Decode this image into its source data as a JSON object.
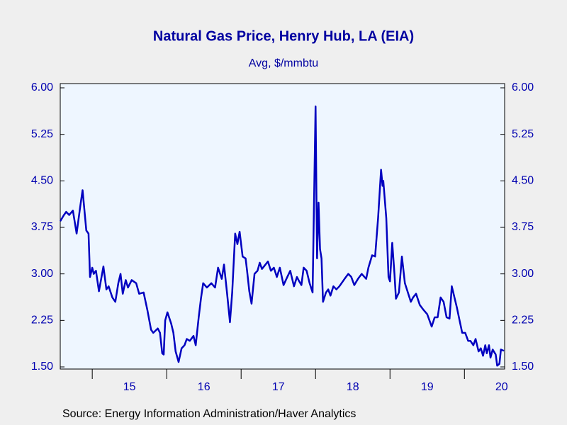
{
  "chart_data": {
    "type": "line",
    "title": "Natural Gas Price, Henry Hub, LA (EIA)",
    "subtitle": "Avg, $/mmbtu",
    "source": "Source:  Energy Information Administration/Haver Analytics",
    "x": [
      2014.57,
      2014.62,
      2014.65,
      2014.69,
      2014.74,
      2014.79,
      2014.84,
      2014.87,
      2014.92,
      2014.95,
      2014.97,
      2015.0,
      2015.02,
      2015.05,
      2015.09,
      2015.15,
      2015.19,
      2015.22,
      2015.27,
      2015.31,
      2015.35,
      2015.38,
      2015.41,
      2015.45,
      2015.48,
      2015.53,
      2015.59,
      2015.63,
      2015.69,
      2015.74,
      2015.79,
      2015.82,
      2015.88,
      2015.91,
      2015.94,
      2015.96,
      2015.98,
      2016.01,
      2016.06,
      2016.09,
      2016.12,
      2016.16,
      2016.2,
      2016.24,
      2016.27,
      2016.31,
      2016.36,
      2016.39,
      2016.43,
      2016.46,
      2016.49,
      2016.54,
      2016.6,
      2016.65,
      2016.69,
      2016.74,
      2016.77,
      2016.81,
      2016.85,
      2016.88,
      2016.92,
      2016.95,
      2016.98,
      2017.02,
      2017.06,
      2017.08,
      2017.11,
      2017.14,
      2017.18,
      2017.22,
      2017.25,
      2017.28,
      2017.36,
      2017.4,
      2017.44,
      2017.48,
      2017.52,
      2017.57,
      2017.62,
      2017.66,
      2017.71,
      2017.75,
      2017.78,
      2017.81,
      2017.84,
      2017.88,
      2017.92,
      2017.96,
      2018.0,
      2018.02,
      2018.04,
      2018.06,
      2018.08,
      2018.1,
      2018.14,
      2018.17,
      2018.2,
      2018.24,
      2018.28,
      2018.32,
      2018.39,
      2018.44,
      2018.48,
      2018.52,
      2018.57,
      2018.62,
      2018.68,
      2018.71,
      2018.76,
      2018.8,
      2018.84,
      2018.88,
      2018.9,
      2018.91,
      2018.95,
      2018.98,
      2019.0,
      2019.03,
      2019.06,
      2019.08,
      2019.12,
      2019.16,
      2019.2,
      2019.24,
      2019.28,
      2019.31,
      2019.35,
      2019.4,
      2019.45,
      2019.5,
      2019.56,
      2019.6,
      2019.64,
      2019.68,
      2019.72,
      2019.76,
      2019.8,
      2019.83,
      2019.87,
      2019.9,
      2019.94,
      2019.97,
      2020.01,
      2020.05,
      2020.08,
      2020.12,
      2020.15,
      2020.19,
      2020.22,
      2020.25,
      2020.28,
      2020.3,
      2020.33,
      2020.35,
      2020.38,
      2020.42,
      2020.44,
      2020.47,
      2020.49,
      2020.53
    ],
    "series": [
      {
        "color": "#0000c0",
        "values": [
          3.85,
          3.95,
          4.0,
          3.95,
          4.02,
          3.65,
          4.1,
          4.35,
          3.7,
          3.65,
          2.95,
          3.1,
          3.0,
          3.05,
          2.72,
          3.12,
          2.75,
          2.8,
          2.62,
          2.55,
          2.85,
          3.0,
          2.68,
          2.9,
          2.78,
          2.9,
          2.85,
          2.68,
          2.7,
          2.42,
          2.1,
          2.05,
          2.12,
          2.05,
          1.72,
          1.7,
          2.25,
          2.38,
          2.2,
          2.05,
          1.75,
          1.58,
          1.8,
          1.85,
          1.95,
          1.92,
          2.0,
          1.85,
          2.3,
          2.6,
          2.85,
          2.78,
          2.85,
          2.78,
          3.1,
          2.92,
          3.15,
          2.7,
          2.22,
          2.7,
          3.65,
          3.48,
          3.68,
          3.28,
          3.25,
          3.05,
          2.72,
          2.52,
          3.0,
          3.05,
          3.18,
          3.08,
          3.2,
          3.05,
          3.1,
          2.95,
          3.1,
          2.82,
          2.95,
          3.05,
          2.8,
          2.95,
          2.88,
          2.82,
          3.1,
          3.05,
          2.85,
          2.7,
          5.7,
          3.25,
          4.15,
          3.4,
          3.25,
          2.55,
          2.7,
          2.75,
          2.65,
          2.8,
          2.75,
          2.8,
          2.92,
          3.0,
          2.95,
          2.82,
          2.92,
          3.0,
          2.92,
          3.1,
          3.3,
          3.28,
          3.9,
          4.68,
          4.42,
          4.5,
          3.9,
          2.95,
          2.88,
          3.5,
          3.0,
          2.6,
          2.7,
          3.28,
          2.85,
          2.7,
          2.55,
          2.62,
          2.68,
          2.5,
          2.42,
          2.35,
          2.15,
          2.3,
          2.3,
          2.62,
          2.55,
          2.3,
          2.28,
          2.8,
          2.6,
          2.45,
          2.22,
          2.05,
          2.05,
          1.92,
          1.92,
          1.85,
          1.95,
          1.75,
          1.8,
          1.68,
          1.85,
          1.72,
          1.85,
          1.65,
          1.78,
          1.7,
          1.52,
          1.55,
          1.78,
          1.76
        ]
      }
    ],
    "xlim": [
      2014.57,
      2020.54
    ],
    "xticks": [
      {
        "value": 2015.5,
        "label": "15"
      },
      {
        "value": 2016.5,
        "label": "16"
      },
      {
        "value": 2017.5,
        "label": "17"
      },
      {
        "value": 2018.5,
        "label": "18"
      },
      {
        "value": 2019.5,
        "label": "19"
      },
      {
        "value": 2020.5,
        "label": "20"
      }
    ],
    "ylim": [
      1.5,
      6.0
    ],
    "yticks": [
      {
        "value": 1.5,
        "label": "1.50"
      },
      {
        "value": 2.25,
        "label": "2.25"
      },
      {
        "value": 3.0,
        "label": "3.00"
      },
      {
        "value": 3.75,
        "label": "3.75"
      },
      {
        "value": 4.5,
        "label": "4.50"
      },
      {
        "value": 5.25,
        "label": "5.25"
      },
      {
        "value": 6.0,
        "label": "6.00"
      }
    ],
    "y2lim": [
      1.5,
      6.0
    ],
    "y2ticks": [
      {
        "value": 1.5,
        "label": "1.50"
      },
      {
        "value": 2.25,
        "label": "2.25"
      },
      {
        "value": 3.0,
        "label": "3.00"
      },
      {
        "value": 3.75,
        "label": "3.75"
      },
      {
        "value": 4.5,
        "label": "4.50"
      },
      {
        "value": 5.25,
        "label": "5.25"
      },
      {
        "value": 6.0,
        "label": "6.00"
      }
    ]
  }
}
